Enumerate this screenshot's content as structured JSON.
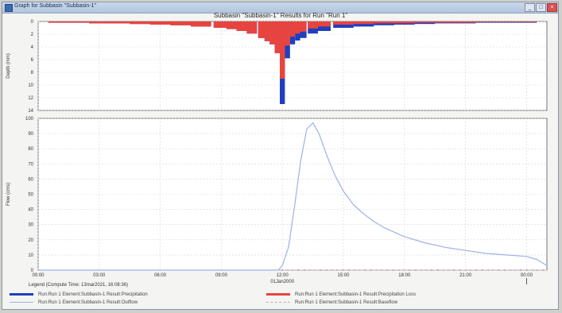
{
  "window": {
    "title": "Graph for Subbasin \"Subbasin-1\"",
    "controls": [
      "_",
      "□",
      "×"
    ]
  },
  "legend": {
    "compute_time": "Legend (Compute Time: 13mar2021, 16:08:36)"
  },
  "colors": {
    "precipitation": "#1f3fbf",
    "precipitation_loss": "#e8443f",
    "outflow": "#9fb0e8",
    "baseflow": "#c9a8b8"
  },
  "chart_data": [
    {
      "type": "bar",
      "title": "Subbasin \"Subbasin-1\" Results for Run \"Run 1\"",
      "ylabel": "Depth (mm)",
      "ylim": [
        0,
        14
      ],
      "y_inverted": true,
      "yticks": [
        0,
        2,
        4,
        6,
        8,
        10,
        12,
        14
      ],
      "grid": true,
      "xlim_hours": [
        0,
        25
      ],
      "series": [
        {
          "name": "Run:Run 1 Element:Subbasin-1 Result:Precipitation",
          "x_hours": [
            1,
            2,
            3,
            4,
            5,
            6,
            7,
            8,
            9,
            9.5,
            10,
            10.5,
            11,
            11.25,
            11.5,
            11.75,
            12,
            12.25,
            12.5,
            12.75,
            13,
            13.5,
            14,
            15,
            16,
            17,
            18,
            19,
            20,
            21,
            22,
            23,
            24
          ],
          "values": [
            0.2,
            0.2,
            0.3,
            0.3,
            0.4,
            0.5,
            0.6,
            0.8,
            1.0,
            1.2,
            1.5,
            1.9,
            2.6,
            3.1,
            3.6,
            5.0,
            13.0,
            5.8,
            3.6,
            3.0,
            2.6,
            1.9,
            1.5,
            1.0,
            0.8,
            0.6,
            0.5,
            0.4,
            0.3,
            0.3,
            0.2,
            0.2,
            0.2
          ]
        },
        {
          "name": "Run:Run 1 Element:Subbasin-1 Result:Precipitation Loss",
          "x_hours": [
            1,
            2,
            3,
            4,
            5,
            6,
            7,
            8,
            9,
            9.5,
            10,
            10.5,
            11,
            11.25,
            11.5,
            11.75,
            12,
            12.25,
            12.5,
            12.75,
            13,
            13.5,
            14,
            15,
            16,
            17,
            18,
            19,
            20,
            21,
            22,
            23,
            24
          ],
          "values": [
            0.2,
            0.2,
            0.3,
            0.3,
            0.4,
            0.5,
            0.6,
            0.8,
            1.0,
            1.2,
            1.5,
            1.9,
            2.6,
            3.1,
            3.6,
            5.0,
            9.0,
            3.8,
            2.4,
            1.9,
            1.6,
            1.1,
            0.8,
            0.5,
            0.4,
            0.3,
            0.3,
            0.2,
            0.2,
            0.2,
            0.1,
            0.1,
            0.1
          ]
        }
      ]
    },
    {
      "type": "line",
      "ylabel": "Flow (cms)",
      "ylim": [
        0,
        100
      ],
      "yticks": [
        0,
        10,
        20,
        30,
        40,
        50,
        60,
        70,
        80,
        90,
        100
      ],
      "grid": true,
      "xlim_hours": [
        0,
        25
      ],
      "xticks": [
        {
          "hour": 0,
          "label": "00:00"
        },
        {
          "hour": 3,
          "label": "03:00"
        },
        {
          "hour": 6,
          "label": "06:00"
        },
        {
          "hour": 9,
          "label": "09:00"
        },
        {
          "hour": 12,
          "label": "12:00"
        },
        {
          "hour": 15,
          "label": "15:00"
        },
        {
          "hour": 18,
          "label": "18:00"
        },
        {
          "hour": 21,
          "label": "21:00"
        },
        {
          "hour": 24,
          "label": "00:00"
        }
      ],
      "date_labels": [
        {
          "hour": 12,
          "label": "01Jan2000"
        }
      ],
      "series": [
        {
          "name": "Run:Run 1 Element:Subbasin-1 Result:Outflow",
          "x_hours": [
            0,
            11.8,
            12.0,
            12.3,
            12.6,
            12.9,
            13.2,
            13.5,
            13.8,
            14.2,
            14.6,
            15.0,
            15.5,
            16.0,
            16.5,
            17.0,
            18.0,
            19.0,
            20.0,
            21.0,
            22.0,
            23.0,
            24.0,
            24.5,
            25.0
          ],
          "values": [
            0,
            0,
            3,
            15,
            42,
            72,
            93,
            97,
            90,
            75,
            62,
            52,
            43,
            37,
            32,
            28,
            22,
            18,
            15,
            13,
            11,
            10,
            9,
            7,
            3
          ]
        },
        {
          "name": "Run:Run 1 Element:Subbasin-1 Result:Baseflow",
          "x_hours": [
            0,
            25
          ],
          "values": [
            0,
            0
          ]
        }
      ]
    }
  ]
}
